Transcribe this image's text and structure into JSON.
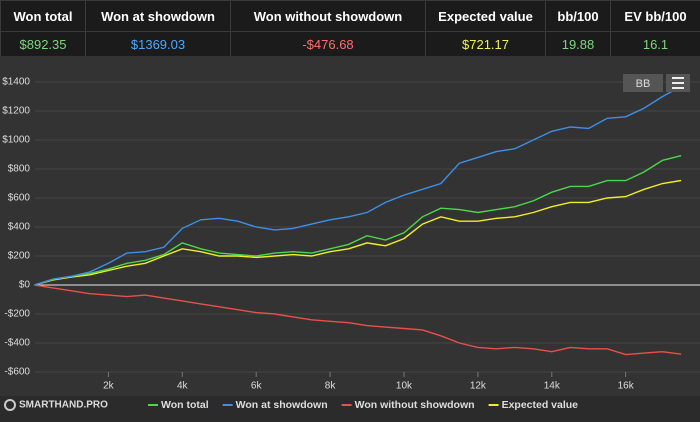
{
  "summary": {
    "headers": [
      "Won total",
      "Won at showdown",
      "Won without showdown",
      "Expected value",
      "bb/100",
      "EV bb/100"
    ],
    "values": [
      "$892.35",
      "$1369.03",
      "-$476.68",
      "$721.17",
      "19.88",
      "16.1"
    ],
    "colors": [
      "#7ed67e",
      "#4ea8ff",
      "#ff6e6e",
      "#f2f25a",
      "#7ed67e",
      "#7ed67e"
    ]
  },
  "brand": "SMARTHAND.PRO",
  "unit_button": "BB",
  "chart_data": {
    "type": "line",
    "x": [
      0,
      500,
      1000,
      1500,
      2000,
      2500,
      3000,
      3500,
      4000,
      4500,
      5000,
      5500,
      6000,
      6500,
      7000,
      7500,
      8000,
      8500,
      9000,
      9500,
      10000,
      10500,
      11000,
      11500,
      12000,
      12500,
      13000,
      13500,
      14000,
      14500,
      15000,
      15500,
      16000,
      16500,
      17000,
      17500
    ],
    "series": [
      {
        "name": "Won total",
        "color": "#4cd64c",
        "values": [
          0,
          40,
          60,
          80,
          110,
          150,
          170,
          210,
          290,
          250,
          220,
          210,
          200,
          220,
          230,
          220,
          250,
          280,
          340,
          310,
          360,
          470,
          530,
          520,
          500,
          520,
          540,
          580,
          640,
          680,
          680,
          720,
          720,
          780,
          860,
          892
        ]
      },
      {
        "name": "Won at showdown",
        "color": "#3d8fe8",
        "values": [
          0,
          40,
          60,
          90,
          150,
          220,
          230,
          260,
          390,
          450,
          460,
          440,
          400,
          380,
          390,
          420,
          450,
          470,
          500,
          570,
          620,
          660,
          700,
          840,
          880,
          920,
          940,
          1000,
          1060,
          1090,
          1080,
          1150,
          1160,
          1220,
          1300,
          1369
        ]
      },
      {
        "name": "Won without showdown",
        "color": "#e8504a",
        "values": [
          0,
          -20,
          -40,
          -60,
          -70,
          -80,
          -70,
          -90,
          -110,
          -130,
          -150,
          -170,
          -190,
          -200,
          -220,
          -240,
          -250,
          -260,
          -280,
          -290,
          -300,
          -310,
          -350,
          -400,
          -430,
          -440,
          -430,
          -440,
          -460,
          -430,
          -440,
          -440,
          -480,
          -470,
          -460,
          -477
        ]
      },
      {
        "name": "Expected value",
        "color": "#f0f020",
        "values": [
          0,
          35,
          55,
          70,
          100,
          130,
          150,
          200,
          250,
          230,
          200,
          200,
          190,
          200,
          210,
          200,
          230,
          250,
          290,
          270,
          320,
          420,
          470,
          440,
          440,
          460,
          470,
          500,
          540,
          570,
          570,
          600,
          610,
          660,
          700,
          721
        ]
      }
    ],
    "xlim": [
      0,
      17700
    ],
    "xticks": [
      {
        "value": 2000,
        "label": "2k"
      },
      {
        "value": 4000,
        "label": "4k"
      },
      {
        "value": 6000,
        "label": "6k"
      },
      {
        "value": 8000,
        "label": "8k"
      },
      {
        "value": 10000,
        "label": "10k"
      },
      {
        "value": 12000,
        "label": "12k"
      },
      {
        "value": 14000,
        "label": "14k"
      },
      {
        "value": 16000,
        "label": "16k"
      }
    ],
    "ylim": [
      -600,
      1400
    ],
    "yticks": [
      {
        "value": -600,
        "label": "-$600"
      },
      {
        "value": -400,
        "label": "-$400"
      },
      {
        "value": -200,
        "label": "-$200"
      },
      {
        "value": 0,
        "label": "$0"
      },
      {
        "value": 200,
        "label": "$200"
      },
      {
        "value": 400,
        "label": "$400"
      },
      {
        "value": 600,
        "label": "$600"
      },
      {
        "value": 800,
        "label": "$800"
      },
      {
        "value": 1000,
        "label": "$1000"
      },
      {
        "value": 1200,
        "label": "$1200"
      },
      {
        "value": 1400,
        "label": "$1400"
      }
    ],
    "grid": true
  }
}
